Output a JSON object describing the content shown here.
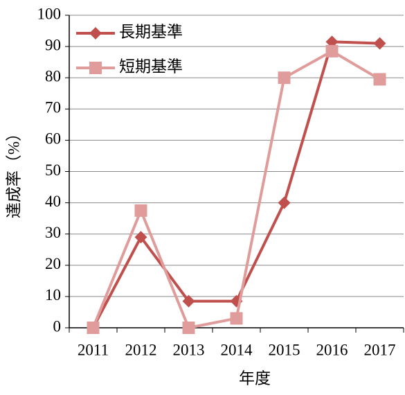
{
  "chart_data": {
    "type": "line",
    "x_label": "年度",
    "y_label": "達成率（%）",
    "categories": [
      "2011",
      "2012",
      "2013",
      "2014",
      "2015",
      "2016",
      "2017"
    ],
    "series": [
      {
        "name": "長期基準",
        "color": "#c0504d",
        "marker": "diamond",
        "values": [
          0,
          29,
          8.5,
          8.5,
          40,
          91.5,
          91
        ]
      },
      {
        "name": "短期基準",
        "color": "#e09c9b",
        "marker": "square",
        "values": [
          0,
          37.5,
          0,
          3,
          80,
          88.5,
          79.5
        ]
      }
    ],
    "ylim": [
      0,
      100
    ],
    "yticks": [
      0,
      10,
      20,
      30,
      40,
      50,
      60,
      70,
      80,
      90,
      100
    ],
    "grid": true,
    "legend": "upper left"
  }
}
